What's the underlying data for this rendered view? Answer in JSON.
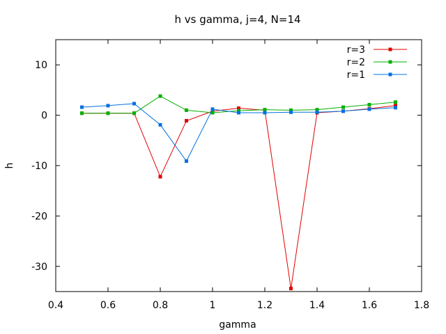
{
  "chart_data": {
    "type": "line",
    "title": "h vs gamma, j=4, N=14",
    "xlabel": "gamma",
    "ylabel": "h",
    "xlim": [
      0.4,
      1.8
    ],
    "ylim": [
      -35,
      15
    ],
    "xticks": [
      0.4,
      0.6,
      0.8,
      1.0,
      1.2,
      1.4,
      1.6,
      1.8
    ],
    "xtick_labels": [
      "0.4",
      "0.6",
      "0.8",
      "1",
      "1.2",
      "1.4",
      "1.6",
      "1.8"
    ],
    "yticks": [
      10,
      0,
      -10,
      -20,
      -30
    ],
    "ytick_labels": [
      "10",
      "0",
      "-10",
      "-20",
      "-30"
    ],
    "grid": false,
    "legend_position": "top-right",
    "x": [
      0.5,
      0.6,
      0.7,
      0.8,
      0.9,
      1.0,
      1.1,
      1.2,
      1.3,
      1.4,
      1.5,
      1.6,
      1.7
    ],
    "series": [
      {
        "name": "r=3",
        "color": "#e00000",
        "values": [
          0.4,
          0.4,
          0.4,
          -12.2,
          -1.1,
          0.8,
          1.4,
          1.0,
          -34.4,
          0.5,
          0.8,
          1.3,
          1.9
        ]
      },
      {
        "name": "r=2",
        "color": "#00b000",
        "values": [
          0.4,
          0.4,
          0.4,
          3.8,
          1.0,
          0.5,
          0.9,
          1.1,
          1.0,
          1.1,
          1.6,
          2.1,
          2.6
        ]
      },
      {
        "name": "r=1",
        "color": "#0070e0",
        "values": [
          1.6,
          1.9,
          2.3,
          -1.9,
          -9.1,
          1.2,
          0.5,
          0.5,
          0.6,
          0.6,
          0.8,
          1.2,
          1.5
        ]
      }
    ]
  }
}
